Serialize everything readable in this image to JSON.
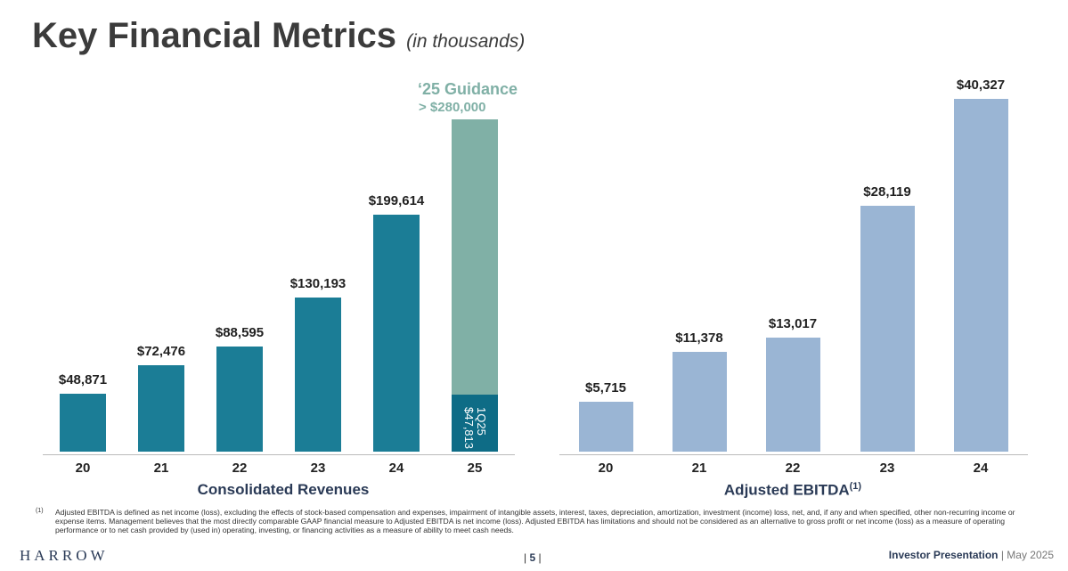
{
  "header": {
    "title": "Key Financial Metrics",
    "subtitle": "(in thousands)"
  },
  "colors": {
    "revenue": "#1b7d96",
    "guidance": "#80b0a6",
    "q1": "#0e6c86",
    "ebitda": "#9ab5d4"
  },
  "chart_data": [
    {
      "type": "bar",
      "title": "Consolidated Revenues",
      "categories": [
        "20",
        "21",
        "22",
        "23",
        "24",
        "25"
      ],
      "values": [
        48871,
        72476,
        88595,
        130193,
        199614,
        47813
      ],
      "labels": [
        "$48,871",
        "$72,476",
        "$88,595",
        "$130,193",
        "$199,614"
      ],
      "guidance": {
        "title": "‘25 Guidance",
        "label": "> $280,000",
        "value": 280000
      },
      "q1_label": {
        "period": "1Q25",
        "value": "$47,813"
      },
      "ylim": [
        0,
        280000
      ]
    },
    {
      "type": "bar",
      "title": "Adjusted EBITDA",
      "title_sup": "(1)",
      "categories": [
        "20",
        "21",
        "22",
        "23",
        "24"
      ],
      "values": [
        5715,
        11378,
        13017,
        28119,
        40327
      ],
      "labels": [
        "$5,715",
        "$11,378",
        "$13,017",
        "$28,119",
        "$40,327"
      ],
      "ylim": [
        0,
        40327
      ]
    }
  ],
  "footnote": {
    "marker": "(1)",
    "text": "Adjusted EBITDA is defined as net income (loss), excluding the effects of stock-based compensation and expenses, impairment of intangible assets, interest, taxes, depreciation, amortization, investment (income) loss, net, and, if any and when specified, other non-recurring income or expense items. Management believes that the most directly comparable GAAP financial measure to Adjusted EBITDA is net income (loss). Adjusted EBITDA has limitations and should not be considered as an alternative to gross profit or net income (loss) as a measure of operating performance or to net cash provided by (used in) operating, investing, or financing activities as a measure of ability to meet cash needs."
  },
  "footer": {
    "logo": "HARROW",
    "page": "5",
    "presentation": "Investor Presentation",
    "date": "May 2025"
  }
}
